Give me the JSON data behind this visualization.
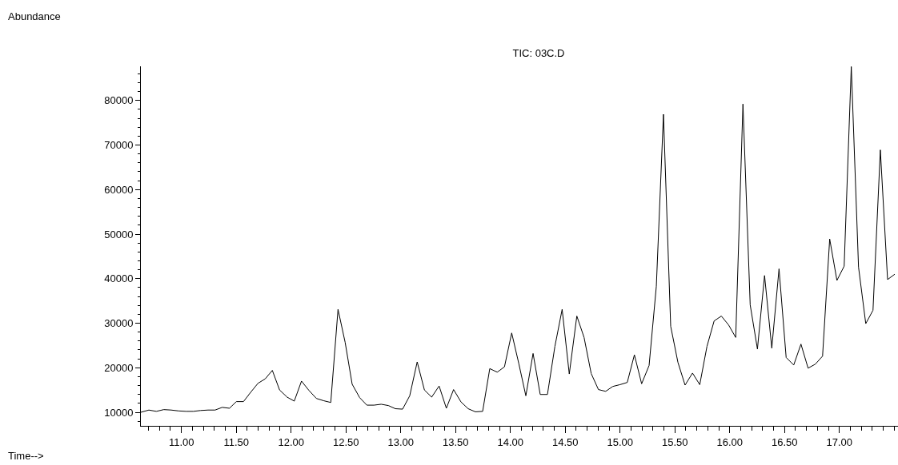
{
  "chart_data": {
    "type": "line",
    "title": "TIC: 03C.D",
    "annotations": [
      "Abundance",
      "Time-->"
    ],
    "x": [
      10.63,
      10.703,
      10.771,
      10.839,
      10.907,
      10.975,
      11.044,
      11.109,
      11.175,
      11.243,
      11.307,
      11.372,
      11.438,
      11.501,
      11.566,
      11.632,
      11.698,
      11.764,
      11.829,
      11.895,
      11.964,
      12.029,
      12.095,
      12.163,
      12.231,
      12.296,
      12.362,
      12.428,
      12.493,
      12.557,
      12.625,
      12.691,
      12.756,
      12.822,
      12.888,
      12.951,
      13.017,
      13.082,
      13.15,
      13.216,
      13.282,
      13.35,
      13.416,
      13.482,
      13.55,
      13.615,
      13.681,
      13.747,
      13.812,
      13.88,
      13.946,
      14.012,
      14.077,
      14.141,
      14.207,
      14.272,
      14.338,
      14.406,
      14.472,
      14.537,
      14.606,
      14.672,
      14.737,
      14.803,
      14.869,
      14.934,
      15.0,
      15.066,
      15.131,
      15.197,
      15.265,
      15.331,
      15.396,
      15.462,
      15.528,
      15.593,
      15.661,
      15.727,
      15.793,
      15.858,
      15.924,
      15.99,
      16.055,
      16.121,
      16.187,
      16.253,
      16.318,
      16.384,
      16.45,
      16.515,
      16.584,
      16.65,
      16.715,
      16.781,
      16.847,
      16.912,
      16.978,
      17.044,
      17.109,
      17.175,
      17.241,
      17.307,
      17.374,
      17.44,
      17.506
    ],
    "series": [
      {
        "color": "#000000",
        "values": [
          10000,
          10500,
          10200,
          10600,
          10500,
          10300,
          10200,
          10200,
          10400,
          10500,
          10500,
          11100,
          10900,
          12400,
          12400,
          14500,
          16500,
          17500,
          19400,
          15000,
          13400,
          12500,
          17000,
          14900,
          13100,
          12600,
          12200,
          33100,
          25700,
          16300,
          13300,
          11600,
          11600,
          11800,
          11500,
          10800,
          10700,
          13700,
          21300,
          15000,
          13400,
          15900,
          10900,
          15100,
          12300,
          10800,
          10100,
          10200,
          19800,
          19000,
          20200,
          27800,
          20900,
          13700,
          23200,
          14000,
          14000,
          24800,
          33100,
          18600,
          31600,
          26800,
          18700,
          15100,
          14700,
          15800,
          16200,
          16700,
          22900,
          16400,
          20500,
          38300,
          76900,
          29300,
          21200,
          16100,
          18800,
          16200,
          24800,
          30500,
          31600,
          29600,
          26800,
          79200,
          34100,
          24200,
          40700,
          24400,
          42200,
          22300,
          20600,
          25300,
          19900,
          20800,
          22600,
          48900,
          39600,
          42800,
          87600,
          42600,
          29900,
          32900,
          68900,
          39800,
          41000
        ]
      }
    ],
    "xlim": [
      10.63,
      17.535
    ],
    "ylim": [
      6950,
      87670
    ],
    "xticks": [
      {
        "value": 11,
        "label": "11.00"
      },
      {
        "value": 11.5,
        "label": "11.50"
      },
      {
        "value": 12,
        "label": "12.00"
      },
      {
        "value": 12.5,
        "label": "12.50"
      },
      {
        "value": 13,
        "label": "13.00"
      },
      {
        "value": 13.5,
        "label": "13.50"
      },
      {
        "value": 14,
        "label": "14.00"
      },
      {
        "value": 14.5,
        "label": "14.50"
      },
      {
        "value": 15,
        "label": "15.00"
      },
      {
        "value": 15.5,
        "label": "15.50"
      },
      {
        "value": 16,
        "label": "16.00"
      },
      {
        "value": 16.5,
        "label": "16.50"
      },
      {
        "value": 17,
        "label": "17.00"
      }
    ],
    "yticks": [
      10000,
      20000,
      30000,
      40000,
      50000,
      60000,
      70000,
      80000
    ],
    "marker": "none",
    "line_style": "solid"
  }
}
